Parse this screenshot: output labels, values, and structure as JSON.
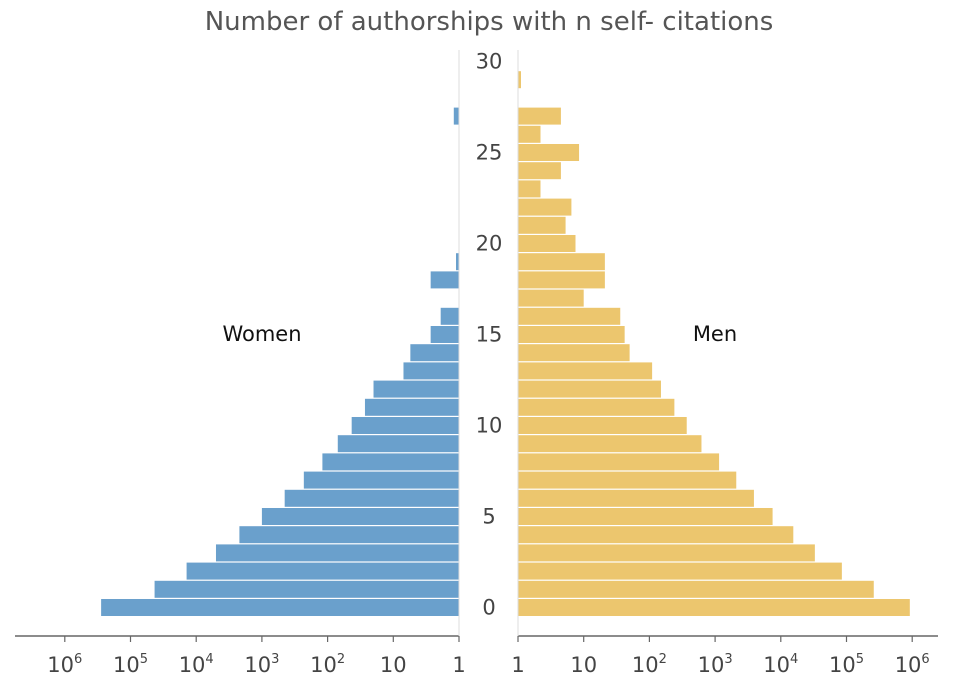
{
  "chart_data": {
    "type": "bar",
    "orientation": "horizontal-mirrored",
    "title": "Number of authorships with n self- citations",
    "y_ticks": [
      "0",
      "5",
      "10",
      "15",
      "20",
      "25",
      "30"
    ],
    "x_ticks_left": [
      "10^6",
      "10^5",
      "10^4",
      "10^3",
      "10^2",
      "10",
      "1"
    ],
    "x_ticks_right": [
      "1",
      "10",
      "10^2",
      "10^3",
      "10^4",
      "10^5",
      "10^6"
    ],
    "x_scale": "log",
    "x_range": [
      1,
      1000000
    ],
    "y_range": [
      0,
      30
    ],
    "grid": false,
    "legend": "none",
    "series": [
      {
        "name": "Women",
        "side": "left",
        "color": "#6aa0cc",
        "values": {
          "0": 280000,
          "1": 43000,
          "2": 14000,
          "3": 5000,
          "4": 2200,
          "5": 1000,
          "6": 450,
          "7": 230,
          "8": 120,
          "9": 70,
          "10": 43,
          "11": 27,
          "12": 20,
          "13": 7,
          "14": 5.5,
          "15": 2.7,
          "16": 1.9,
          "18": 2.7,
          "19": 1.1,
          "27": 1.2
        }
      },
      {
        "name": "Men",
        "side": "right",
        "color": "#ecc66e",
        "values": {
          "0": 920000,
          "1": 260000,
          "2": 85000,
          "3": 33000,
          "4": 15500,
          "5": 7500,
          "6": 3900,
          "7": 2100,
          "8": 1150,
          "9": 620,
          "10": 370,
          "11": 240,
          "12": 150,
          "13": 110,
          "14": 50,
          "15": 42,
          "16": 36,
          "17": 10,
          "18": 21,
          "19": 21,
          "20": 7.5,
          "21": 5.3,
          "22": 6.5,
          "23": 2.2,
          "24": 4.5,
          "25": 8.5,
          "26": 2.2,
          "27": 4.5,
          "29": 1.1
        }
      }
    ]
  }
}
